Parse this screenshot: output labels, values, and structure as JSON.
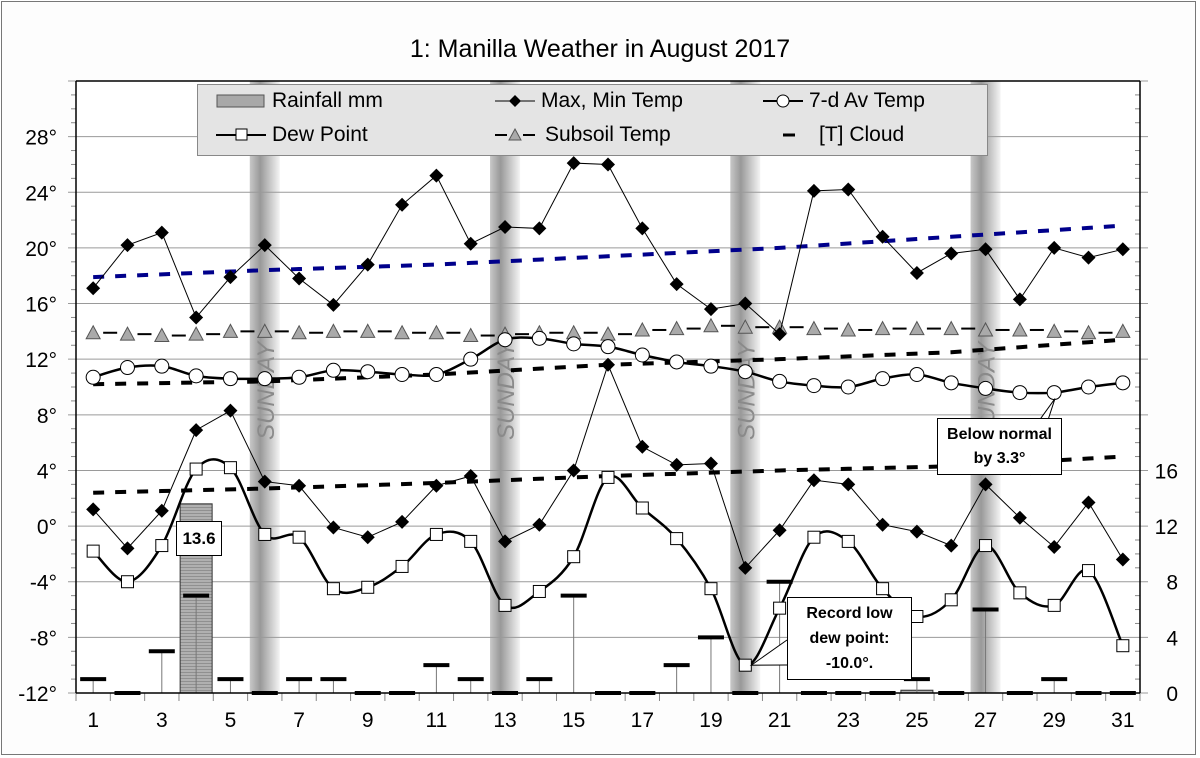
{
  "chart_data": {
    "type": "line",
    "title": "1: Manilla Weather in August 2017",
    "x": [
      1,
      2,
      3,
      4,
      5,
      6,
      7,
      8,
      9,
      10,
      11,
      12,
      13,
      14,
      15,
      16,
      17,
      18,
      19,
      20,
      21,
      22,
      23,
      24,
      25,
      26,
      27,
      28,
      29,
      30,
      31
    ],
    "x_tick_labels": [
      "1",
      "3",
      "5",
      "7",
      "9",
      "11",
      "13",
      "15",
      "17",
      "19",
      "21",
      "23",
      "25",
      "27",
      "29",
      "31"
    ],
    "y_left": {
      "range": [
        -12,
        32
      ],
      "tick_labels": [
        "-12°",
        "-8°",
        "-4°",
        "0°",
        "4°",
        "8°",
        "12°",
        "16°",
        "20°",
        "24°",
        "28°"
      ],
      "grid": true
    },
    "y_right": {
      "range": [
        0,
        16
      ],
      "tick_labels": [
        "0",
        "4",
        "8",
        "12",
        "16"
      ]
    },
    "series": [
      {
        "name": "Rainfall mm",
        "type": "bar",
        "axis": "right",
        "values": [
          0,
          0,
          0,
          13.6,
          0,
          0,
          0,
          0,
          0,
          0,
          0,
          0,
          0,
          0,
          0,
          0,
          0,
          0,
          0,
          0,
          0,
          0,
          0,
          0,
          0.2,
          0,
          0,
          0,
          0,
          0,
          0
        ]
      },
      {
        "name": "Max, Min Temp",
        "role": "max",
        "values": [
          17.1,
          20.2,
          21.1,
          15.0,
          17.9,
          20.2,
          17.8,
          15.9,
          18.8,
          23.1,
          25.2,
          20.3,
          21.5,
          21.4,
          26.1,
          26.0,
          21.4,
          17.4,
          15.6,
          16.0,
          13.8,
          24.1,
          24.2,
          20.8,
          18.2,
          19.6,
          19.9,
          16.3,
          20.0,
          19.3,
          19.9
        ]
      },
      {
        "name": "Max, Min Temp",
        "role": "min",
        "values": [
          1.2,
          -1.6,
          1.1,
          6.9,
          8.3,
          3.2,
          2.9,
          -0.1,
          -0.8,
          0.3,
          2.9,
          3.6,
          -1.1,
          0.1,
          4.0,
          11.6,
          5.7,
          4.4,
          4.5,
          -3.0,
          -0.3,
          3.3,
          3.0,
          0.1,
          -0.4,
          -1.4,
          3.0,
          0.6,
          -1.5,
          1.7,
          -2.4
        ]
      },
      {
        "name": "7-d Av Temp",
        "values": [
          10.7,
          11.4,
          11.5,
          10.8,
          10.6,
          10.6,
          10.7,
          11.2,
          11.1,
          10.9,
          10.9,
          12.0,
          13.4,
          13.5,
          13.1,
          12.9,
          12.3,
          11.8,
          11.5,
          11.1,
          10.4,
          10.1,
          10.0,
          10.6,
          10.9,
          10.3,
          9.9,
          9.6,
          9.6,
          10.0,
          10.3
        ]
      },
      {
        "name": "Dew Point",
        "values": [
          -1.8,
          -4.0,
          -1.4,
          4.1,
          4.2,
          -0.6,
          -0.8,
          -4.5,
          -4.4,
          -2.9,
          -0.6,
          -1.1,
          -5.7,
          -4.7,
          -2.2,
          3.5,
          1.3,
          -0.9,
          -4.5,
          -10.0,
          -5.9,
          -0.8,
          -1.1,
          -4.5,
          -6.5,
          -5.3,
          -1.4,
          -4.8,
          -5.7,
          -3.2,
          -8.6
        ]
      },
      {
        "name": "Subsoil Temp",
        "values": [
          13.9,
          13.8,
          13.7,
          13.8,
          14.0,
          14.0,
          13.9,
          14.0,
          14.0,
          13.9,
          13.9,
          13.7,
          13.8,
          13.9,
          13.9,
          13.8,
          14.1,
          14.2,
          14.4,
          14.3,
          14.3,
          14.2,
          14.1,
          14.2,
          14.2,
          14.2,
          14.1,
          14.1,
          14.0,
          13.9,
          14.0
        ]
      },
      {
        "name": "[T] Cloud",
        "axis": "right",
        "values": [
          1,
          0,
          3,
          7,
          1,
          0,
          1,
          1,
          0,
          0,
          2,
          1,
          0,
          1,
          7,
          0,
          0,
          2,
          4,
          0,
          8,
          0,
          0,
          0,
          1,
          0,
          6,
          0,
          1,
          0,
          0
        ]
      },
      {
        "role": "normal-max",
        "color": "#00008b",
        "x": [
          1,
          6,
          11,
          16,
          21,
          26,
          31
        ],
        "values": [
          17.9,
          18.4,
          18.8,
          19.4,
          20.0,
          20.8,
          21.6
        ]
      },
      {
        "role": "normal-mean",
        "color": "#000000",
        "x": [
          1,
          6,
          11,
          16,
          21,
          26,
          31
        ],
        "values": [
          10.2,
          10.4,
          10.9,
          11.6,
          12.0,
          12.5,
          13.4
        ]
      },
      {
        "role": "normal-min",
        "color": "#000000",
        "x": [
          1,
          6,
          11,
          16,
          21,
          26,
          31
        ],
        "values": [
          2.4,
          2.7,
          3.1,
          3.6,
          4.0,
          4.3,
          5.0
        ]
      }
    ],
    "sunday_days": [
      6,
      13,
      20,
      27
    ],
    "sunday_label": "SUNDAY",
    "legend_placement": "top",
    "annotations": {
      "rain_label": "13.6",
      "below_normal": [
        "Below normal",
        "by 3.3°"
      ],
      "record_low": [
        "Record low",
        "dew point:",
        "-10.0°."
      ]
    }
  },
  "legend": {
    "rainfall": "Rainfall mm",
    "maxmin": "Max, Min Temp",
    "avg": "7-d Av Temp",
    "dew": "Dew Point",
    "subsoil": "Subsoil Temp",
    "cloud": "[T] Cloud"
  }
}
